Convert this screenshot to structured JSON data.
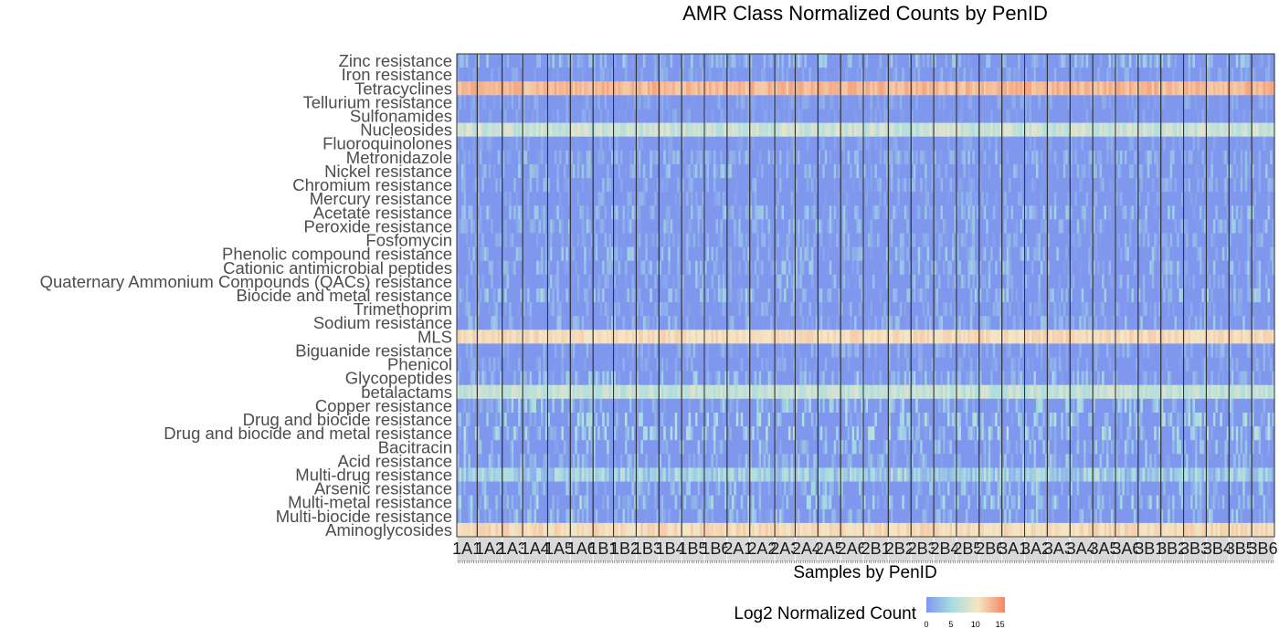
{
  "chart_data": {
    "type": "heatmap",
    "title": "AMR Class Normalized Counts by PenID",
    "xlabel": "Samples by PenID",
    "legend": {
      "title": "Log2 Normalized Count",
      "ticks": [
        "0",
        "5",
        "10",
        "15"
      ],
      "range": [
        0,
        16
      ],
      "colors": [
        "#8097ee",
        "#a8dde2",
        "#f5e6c4",
        "#f5855f"
      ],
      "placement": "bottom"
    },
    "rows": [
      {
        "label": "Zinc resistance",
        "level": 2.2,
        "spread": 2.2
      },
      {
        "label": "Iron resistance",
        "level": 1.0,
        "spread": 1.4
      },
      {
        "label": "Tetracyclines",
        "level": 12.8,
        "spread": 1.4
      },
      {
        "label": "Tellurium resistance",
        "level": 0.8,
        "spread": 1.3
      },
      {
        "label": "Sulfonamides",
        "level": 0.5,
        "spread": 1.2
      },
      {
        "label": "Nucleosides",
        "level": 7.2,
        "spread": 1.8
      },
      {
        "label": "Fluoroquinolones",
        "level": 0.6,
        "spread": 1.2
      },
      {
        "label": "Metronidazole",
        "level": 1.8,
        "spread": 1.8
      },
      {
        "label": "Nickel resistance",
        "level": 1.8,
        "spread": 2.4
      },
      {
        "label": "Chromium resistance",
        "level": 1.2,
        "spread": 1.8
      },
      {
        "label": "Mercury resistance",
        "level": 0.8,
        "spread": 1.6
      },
      {
        "label": "Acetate resistance",
        "level": 1.8,
        "spread": 2.4
      },
      {
        "label": "Peroxide resistance",
        "level": 1.6,
        "spread": 2.2
      },
      {
        "label": "Fosfomycin",
        "level": 1.2,
        "spread": 1.6
      },
      {
        "label": "Phenolic compound resistance",
        "level": 1.8,
        "spread": 2.4
      },
      {
        "label": "Cationic antimicrobial peptides",
        "level": 1.8,
        "spread": 2.4
      },
      {
        "label": "Quaternary Ammonium Compounds (QACs) resistance",
        "level": 1.4,
        "spread": 2.2
      },
      {
        "label": "Biocide and metal resistance",
        "level": 2.2,
        "spread": 2.6
      },
      {
        "label": "Trimethoprim",
        "level": 1.0,
        "spread": 1.6
      },
      {
        "label": "Sodium resistance",
        "level": 1.6,
        "spread": 2.2
      },
      {
        "label": "MLS",
        "level": 10.6,
        "spread": 1.0
      },
      {
        "label": "Biguanide resistance",
        "level": 1.2,
        "spread": 1.8
      },
      {
        "label": "Phenicol",
        "level": 0.8,
        "spread": 1.4
      },
      {
        "label": "Glycopeptides",
        "level": 2.4,
        "spread": 2.2
      },
      {
        "label": "betalactams",
        "level": 6.8,
        "spread": 1.6
      },
      {
        "label": "Copper resistance",
        "level": 2.6,
        "spread": 3.2
      },
      {
        "label": "Drug and biocide resistance",
        "level": 3.0,
        "spread": 3.4
      },
      {
        "label": "Drug and biocide and metal resistance",
        "level": 3.0,
        "spread": 3.4
      },
      {
        "label": "Bacitracin",
        "level": 1.8,
        "spread": 2.8
      },
      {
        "label": "Acid resistance",
        "level": 1.6,
        "spread": 2.4
      },
      {
        "label": "Multi-drug resistance",
        "level": 4.0,
        "spread": 2.8
      },
      {
        "label": "Arsenic resistance",
        "level": 2.0,
        "spread": 2.8
      },
      {
        "label": "Multi-metal resistance",
        "level": 2.6,
        "spread": 3.0
      },
      {
        "label": "Multi-biocide resistance",
        "level": 2.0,
        "spread": 2.6
      },
      {
        "label": "Aminoglycosides",
        "level": 10.6,
        "spread": 1.2
      }
    ],
    "panels": [
      {
        "label": "1A1",
        "samples": 9
      },
      {
        "label": "1A2",
        "samples": 11
      },
      {
        "label": "1A3",
        "samples": 9
      },
      {
        "label": "1A4",
        "samples": 11
      },
      {
        "label": "1A5",
        "samples": 10
      },
      {
        "label": "1A6",
        "samples": 10
      },
      {
        "label": "1B1",
        "samples": 9
      },
      {
        "label": "1B2",
        "samples": 10
      },
      {
        "label": "1B3",
        "samples": 10
      },
      {
        "label": "1B4",
        "samples": 10
      },
      {
        "label": "1B5",
        "samples": 10
      },
      {
        "label": "1B6",
        "samples": 10
      },
      {
        "label": "2A1",
        "samples": 10
      },
      {
        "label": "2A2",
        "samples": 11
      },
      {
        "label": "2A3",
        "samples": 9
      },
      {
        "label": "2A4",
        "samples": 10
      },
      {
        "label": "2A5",
        "samples": 10
      },
      {
        "label": "2A6",
        "samples": 10
      },
      {
        "label": "2B1",
        "samples": 11
      },
      {
        "label": "2B2",
        "samples": 10
      },
      {
        "label": "2B3",
        "samples": 10
      },
      {
        "label": "2B4",
        "samples": 10
      },
      {
        "label": "2B5",
        "samples": 10
      },
      {
        "label": "2B6",
        "samples": 10
      },
      {
        "label": "3A1",
        "samples": 10
      },
      {
        "label": "3A2",
        "samples": 10
      },
      {
        "label": "3A3",
        "samples": 10
      },
      {
        "label": "3A4",
        "samples": 10
      },
      {
        "label": "3A5",
        "samples": 10
      },
      {
        "label": "3A6",
        "samples": 10
      },
      {
        "label": "3B1",
        "samples": 10
      },
      {
        "label": "3B2",
        "samples": 10
      },
      {
        "label": "3B3",
        "samples": 10
      },
      {
        "label": "3B4",
        "samples": 10
      },
      {
        "label": "3B5",
        "samples": 10
      },
      {
        "label": "3B6",
        "samples": 10
      }
    ]
  }
}
